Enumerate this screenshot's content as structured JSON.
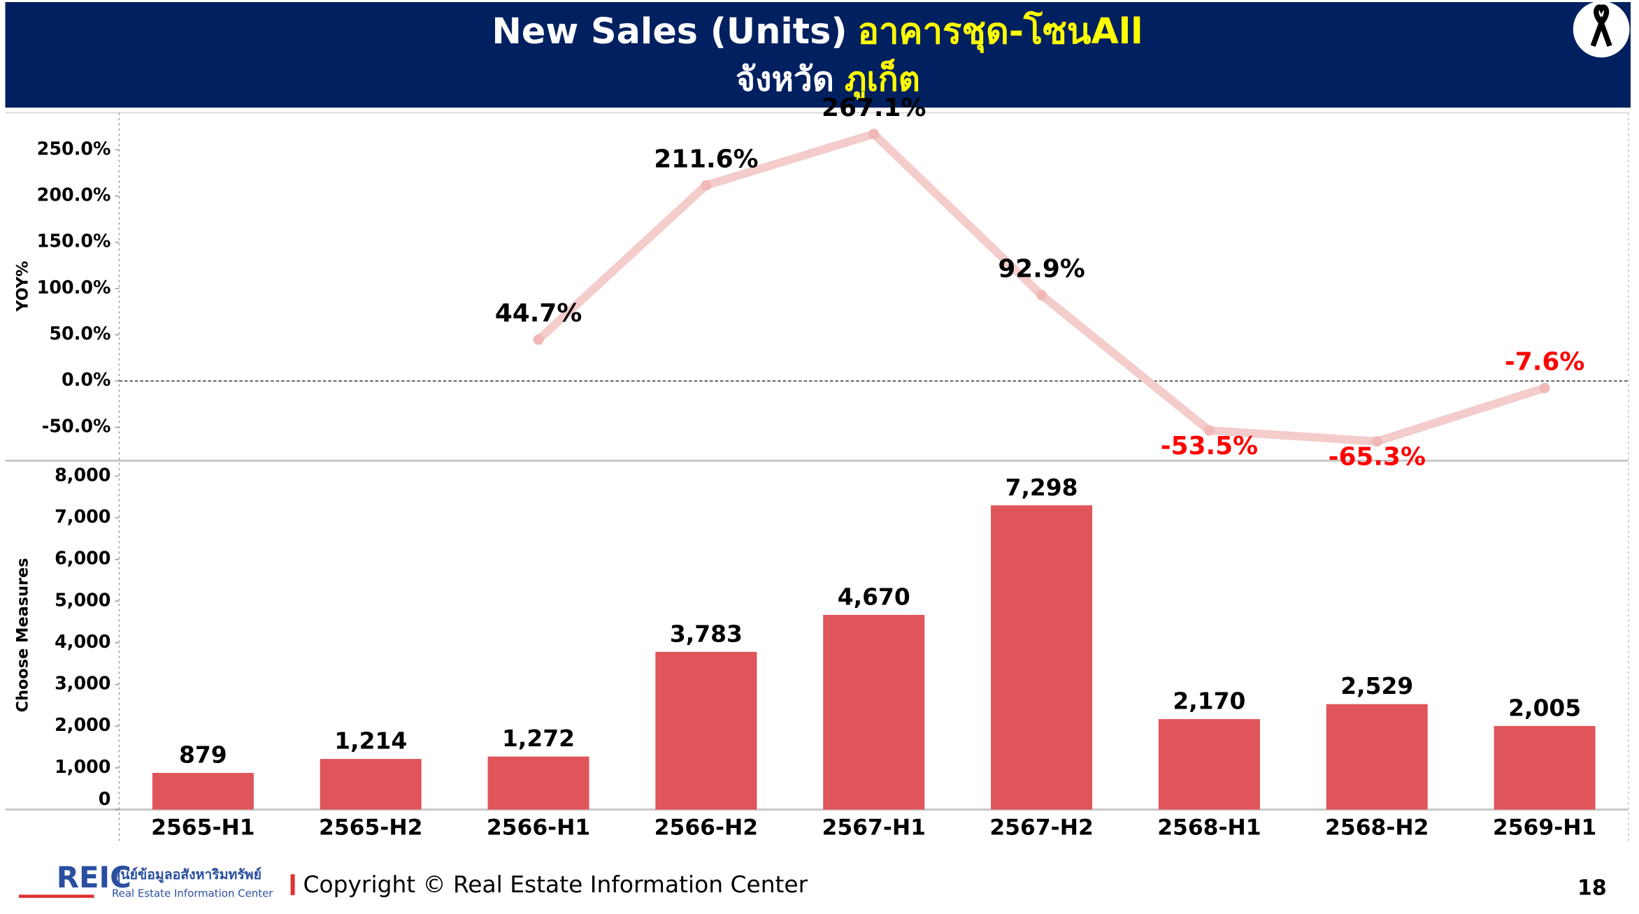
{
  "header": {
    "title_en": "New Sales (Units)",
    "title_th": "อาคารชุด-โซนAll",
    "province_label": "จังหวัด",
    "province": "ภูเก็ต"
  },
  "chart_data": [
    {
      "type": "line",
      "y_axis_label": "YOY%",
      "categories": [
        "2565-H1",
        "2565-H2",
        "2566-H1",
        "2566-H2",
        "2567-H1",
        "2567-H2",
        "2568-H1",
        "2568-H2",
        "2569-H1"
      ],
      "values": [
        null,
        null,
        44.7,
        211.6,
        267.1,
        92.9,
        -53.5,
        -65.3,
        -7.6
      ],
      "value_labels": [
        null,
        null,
        "44.7%",
        "211.6%",
        "267.1%",
        "92.9%",
        "-53.5%",
        "-65.3%",
        "-7.6%"
      ],
      "color": "#f4cccc",
      "label_color": "#000000",
      "negative_label_color": "#ff0000",
      "ylim": [
        -85,
        290
      ],
      "yticks": [
        {
          "value": -50,
          "label": "-50.0%"
        },
        {
          "value": 0,
          "label": "0.0%"
        },
        {
          "value": 50,
          "label": "50.0%"
        },
        {
          "value": 100,
          "label": "100.0%"
        },
        {
          "value": 150,
          "label": "150.0%"
        },
        {
          "value": 200,
          "label": "200.0%"
        },
        {
          "value": 250,
          "label": "250.0%"
        }
      ]
    },
    {
      "type": "bar",
      "y_axis_label": "Choose Measures",
      "categories": [
        "2565-H1",
        "2565-H2",
        "2566-H1",
        "2566-H2",
        "2567-H1",
        "2567-H2",
        "2568-H1",
        "2568-H2",
        "2569-H1"
      ],
      "values": [
        879,
        1214,
        1272,
        3783,
        4670,
        7298,
        2170,
        2529,
        2005
      ],
      "value_labels": [
        "879",
        "1,214",
        "1,272",
        "3,783",
        "4,670",
        "7,298",
        "2,170",
        "2,529",
        "2,005"
      ],
      "color": "#e05559",
      "ylim": [
        0,
        8320
      ],
      "yticks": [
        0,
        {
          "value": 1000,
          "label": "1,000"
        },
        {
          "value": 2000,
          "label": "2,000"
        },
        {
          "value": 3000,
          "label": "3,000"
        },
        {
          "value": 4000,
          "label": "4,000"
        },
        {
          "value": 5000,
          "label": "5,000"
        },
        {
          "value": 6000,
          "label": "6,000"
        },
        {
          "value": 7000,
          "label": "7,000"
        },
        {
          "value": 8000,
          "label": "8,000"
        }
      ]
    }
  ],
  "footer": {
    "logo": "REIC",
    "logo_th": "ศูนย์ข้อมูลอสังหาริมทรัพย์",
    "logo_en": "Real Estate Information Center",
    "copyright": "Copyright © Real Estate Information Center",
    "page": "18"
  }
}
